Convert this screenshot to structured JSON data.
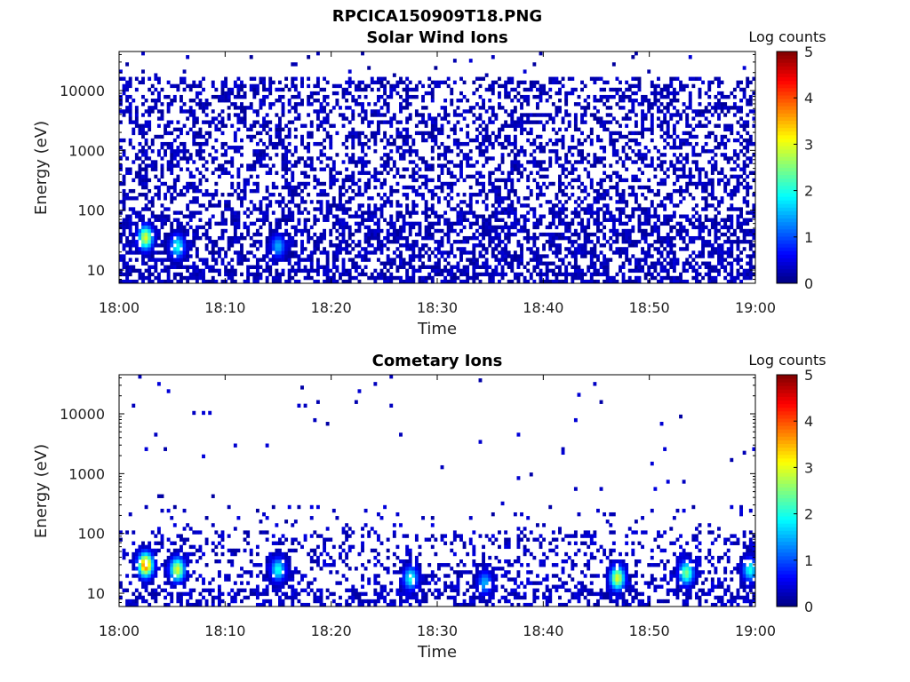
{
  "figure_title": "RPCICA150909T18.PNG",
  "chart_data": [
    {
      "type": "heatmap",
      "title": "Solar Wind Ions",
      "xlabel": "Time",
      "ylabel": "Energy (eV)",
      "x_ticks": [
        "18:00",
        "18:10",
        "18:20",
        "18:30",
        "18:40",
        "18:50",
        "19:00"
      ],
      "x_range": [
        "18:00",
        "19:00"
      ],
      "y_scale": "log",
      "y_ticks": [
        10,
        100,
        1000,
        10000
      ],
      "y_tick_labels": [
        "10",
        "100",
        "1000",
        "10000"
      ],
      "y_range": [
        6,
        45000
      ],
      "colorbar": {
        "label": "Log counts",
        "range": [
          0,
          5
        ],
        "ticks": [
          "0",
          "1",
          "2",
          "3",
          "4",
          "5"
        ],
        "colormap": "jet"
      },
      "hotspots": [
        {
          "time_min": 2.5,
          "energy_eV": 35,
          "log_counts": 3.0
        },
        {
          "time_min": 5.5,
          "energy_eV": 25,
          "log_counts": 2.0
        },
        {
          "time_min": 15.0,
          "energy_eV": 25,
          "log_counts": 1.5
        }
      ],
      "background": "sparse low counts (log counts 0-1) across all energies from ~7 eV to ~15000 eV",
      "grid": false
    },
    {
      "type": "heatmap",
      "title": "Cometary Ions",
      "xlabel": "Time",
      "ylabel": "Energy (eV)",
      "x_ticks": [
        "18:00",
        "18:10",
        "18:20",
        "18:30",
        "18:40",
        "18:50",
        "19:00"
      ],
      "x_range": [
        "18:00",
        "19:00"
      ],
      "y_scale": "log",
      "y_ticks": [
        10,
        100,
        1000,
        10000
      ],
      "y_tick_labels": [
        "10",
        "100",
        "1000",
        "10000"
      ],
      "y_range": [
        6,
        45000
      ],
      "colorbar": {
        "label": "Log counts",
        "range": [
          0,
          5
        ],
        "ticks": [
          "0",
          "1",
          "2",
          "3",
          "4",
          "5"
        ],
        "colormap": "jet"
      },
      "hotspots": [
        {
          "time_min": 2.5,
          "energy_eV": 30,
          "log_counts": 4.0
        },
        {
          "time_min": 5.5,
          "energy_eV": 25,
          "log_counts": 3.0
        },
        {
          "time_min": 15.0,
          "energy_eV": 25,
          "log_counts": 2.0
        },
        {
          "time_min": 27.5,
          "energy_eV": 18,
          "log_counts": 2.0
        },
        {
          "time_min": 34.5,
          "energy_eV": 15,
          "log_counts": 1.5
        },
        {
          "time_min": 47.0,
          "energy_eV": 18,
          "log_counts": 3.0
        },
        {
          "time_min": 53.5,
          "energy_eV": 22,
          "log_counts": 2.5
        },
        {
          "time_min": 59.5,
          "energy_eV": 25,
          "log_counts": 2.0
        }
      ],
      "background": "counts concentrated below ~150 eV with isolated points up to ~25000 eV",
      "grid": false
    }
  ]
}
